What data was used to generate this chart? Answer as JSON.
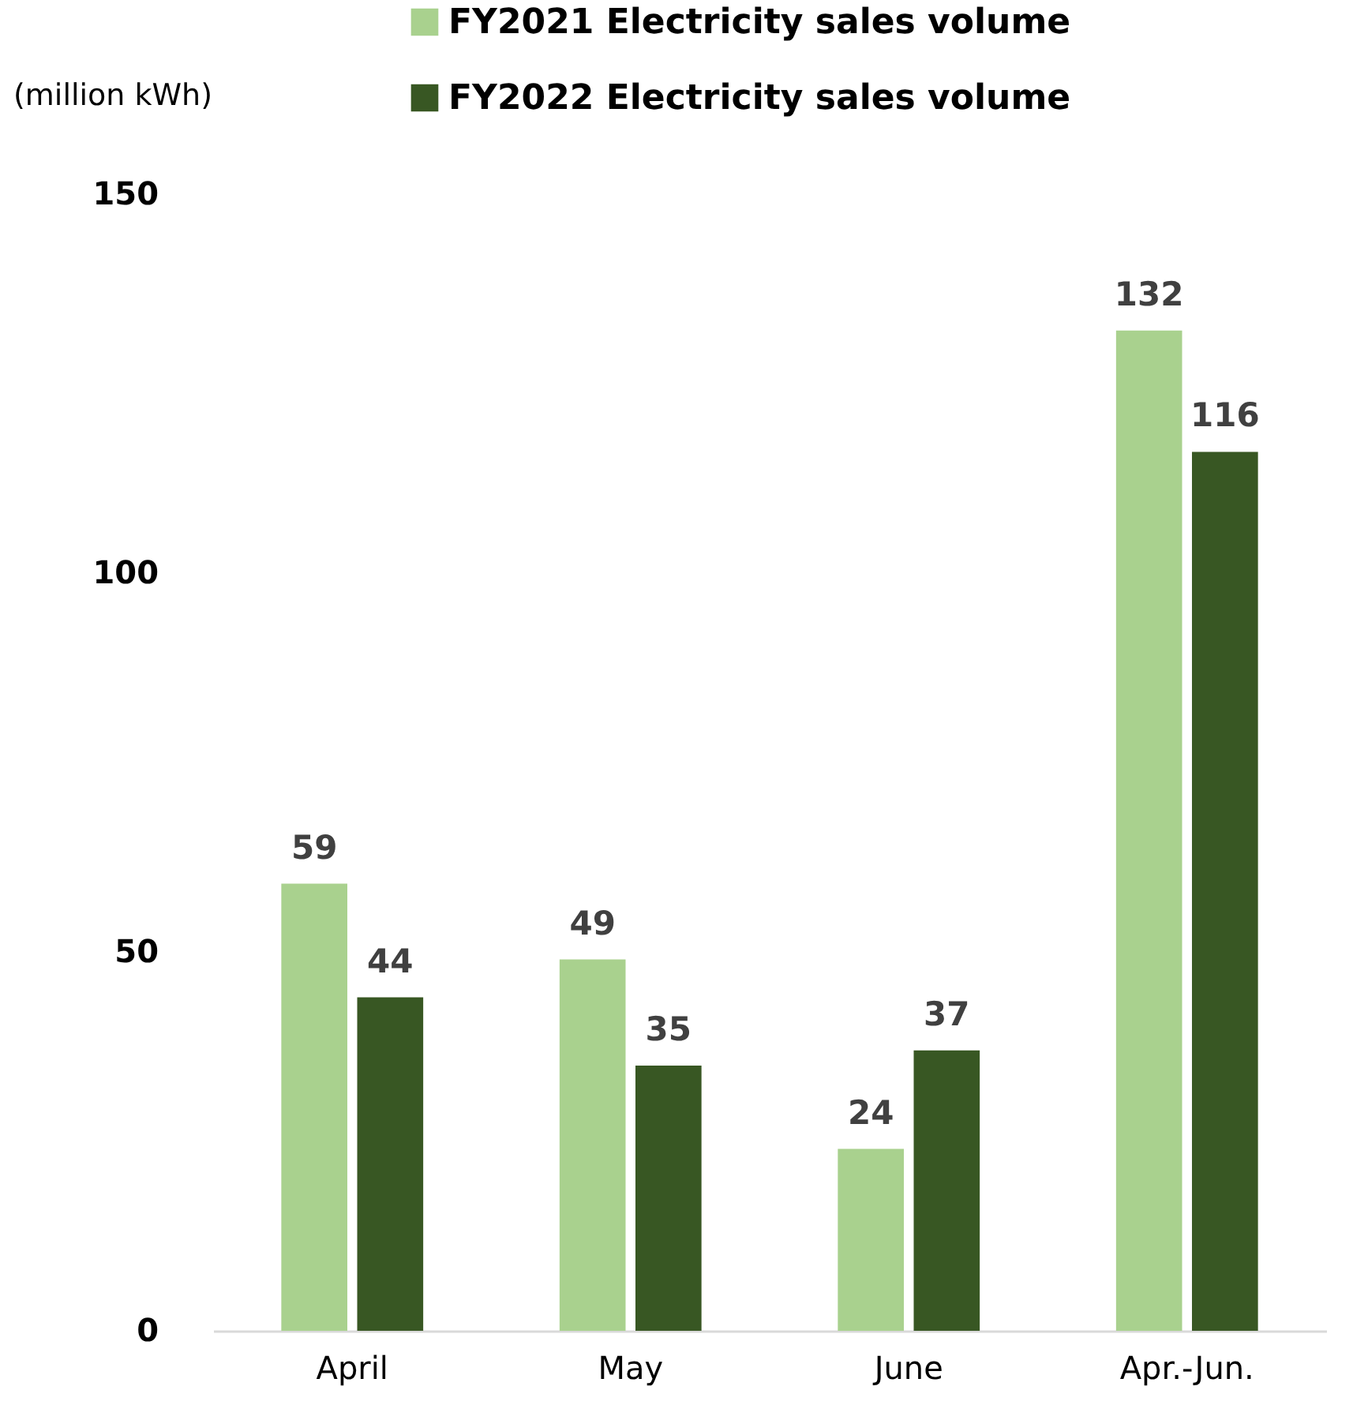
{
  "chart_data": {
    "type": "bar",
    "ylabel": "(million kWh)",
    "categories": [
      "April",
      "May",
      "June",
      "Apr.-Jun."
    ],
    "series": [
      {
        "name": "FY2021 Electricity sales volume",
        "color": "#a9d18e",
        "values": [
          59,
          49,
          24,
          132
        ]
      },
      {
        "name": "FY2022 Electricity sales volume",
        "color": "#385723",
        "values": [
          44,
          35,
          37,
          116
        ]
      }
    ],
    "ylim": [
      0,
      150
    ],
    "yticks": [
      0,
      50,
      100,
      150
    ],
    "grid": false,
    "legend": "top",
    "data_labels": true
  }
}
